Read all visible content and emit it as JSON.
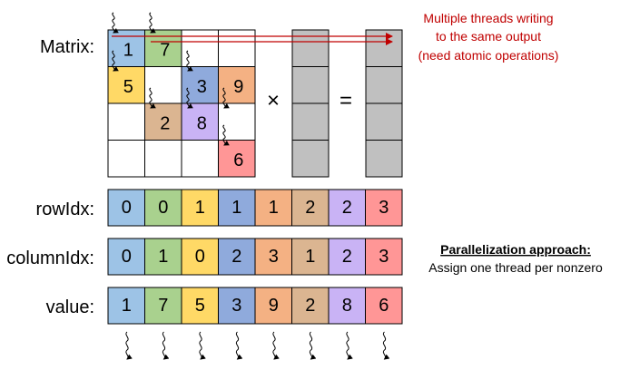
{
  "labels": {
    "matrix": "Matrix:",
    "rowIdx": "rowIdx:",
    "columnIdx": "columnIdx:",
    "value": "value:"
  },
  "operators": {
    "times": "×",
    "equals": "="
  },
  "note": {
    "line1": "Multiple threads writing",
    "line2": "to the same output",
    "line3": "(need atomic operations)"
  },
  "parallelization": {
    "title": "Parallelization approach:",
    "body": "Assign one thread per nonzero"
  },
  "colors": {
    "blue": "#9dc3e6",
    "green": "#a9d18e",
    "yellow": "#ffd966",
    "indigo": "#8faadc",
    "orange": "#f4b183",
    "tan": "#dbb591",
    "violet": "#c9b3f5",
    "red": "#ff9696",
    "gray": "#c0c0c0",
    "note_red": "#c00000"
  },
  "nonzeros": [
    {
      "row": 0,
      "col": 0,
      "value": "1",
      "color": "#9dc3e6"
    },
    {
      "row": 0,
      "col": 1,
      "value": "7",
      "color": "#a9d18e"
    },
    {
      "row": 1,
      "col": 0,
      "value": "5",
      "color": "#ffd966"
    },
    {
      "row": 1,
      "col": 2,
      "value": "3",
      "color": "#8faadc"
    },
    {
      "row": 1,
      "col": 3,
      "value": "9",
      "color": "#f4b183"
    },
    {
      "row": 2,
      "col": 1,
      "value": "2",
      "color": "#dbb591"
    },
    {
      "row": 2,
      "col": 2,
      "value": "8",
      "color": "#c9b3f5"
    },
    {
      "row": 3,
      "col": 3,
      "value": "6",
      "color": "#ff9696"
    }
  ],
  "arrays": {
    "rowIdx": [
      "0",
      "0",
      "1",
      "1",
      "1",
      "2",
      "2",
      "3"
    ],
    "columnIdx": [
      "0",
      "1",
      "0",
      "2",
      "3",
      "1",
      "2",
      "3"
    ],
    "value": [
      "1",
      "7",
      "5",
      "3",
      "9",
      "2",
      "8",
      "6"
    ]
  },
  "cell_colors": [
    "#9dc3e6",
    "#a9d18e",
    "#ffd966",
    "#8faadc",
    "#f4b183",
    "#dbb591",
    "#c9b3f5",
    "#ff9696"
  ]
}
